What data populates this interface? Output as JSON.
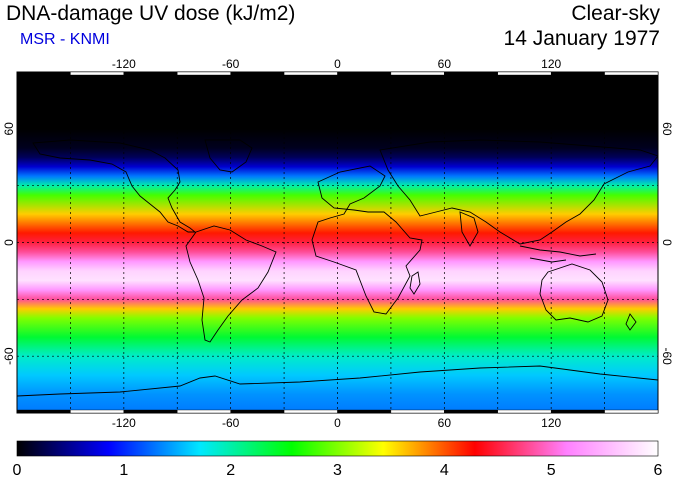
{
  "header": {
    "title": "DNA-damage UV dose (kJ/m2)",
    "organization": "MSR - KNMI",
    "mode": "Clear-sky",
    "date": "14 January 1977"
  },
  "map": {
    "projection": "equirectangular",
    "lon_range": [
      -180,
      180
    ],
    "lat_range": [
      -90,
      90
    ],
    "lon_ticks": [
      "-120",
      "-60",
      "0",
      "60",
      "120"
    ],
    "lat_ticks": [
      "60",
      "0",
      "-60"
    ],
    "grid": "dashed every 30 degrees",
    "lon_tick_values": [
      -120,
      -60,
      0,
      60,
      120
    ],
    "lat_tick_values": [
      60,
      0,
      -60
    ]
  },
  "colorbar": {
    "min": 0,
    "max": 6,
    "labels": [
      "0",
      "1",
      "2",
      "3",
      "4",
      "5",
      "6"
    ],
    "colors": [
      "#000000",
      "#0000ff",
      "#00e8ff",
      "#00ff00",
      "#ffff00",
      "#ff0000",
      "#ff80ff",
      "#ffffff"
    ]
  },
  "field_profile": {
    "latitudes": [
      90,
      60,
      50,
      45,
      40,
      35,
      30,
      25,
      15,
      5,
      0,
      -5,
      -10,
      -15,
      -20,
      -25,
      -30,
      -35,
      -40,
      -50,
      -60,
      -70,
      -80,
      -90
    ],
    "dose": [
      0.0,
      0.0,
      0.1,
      0.3,
      0.7,
      1.3,
      2.0,
      2.8,
      3.6,
      4.2,
      4.5,
      4.8,
      5.3,
      5.7,
      5.8,
      5.3,
      4.8,
      3.6,
      3.0,
      2.4,
      1.9,
      1.6,
      1.4,
      1.3
    ]
  }
}
